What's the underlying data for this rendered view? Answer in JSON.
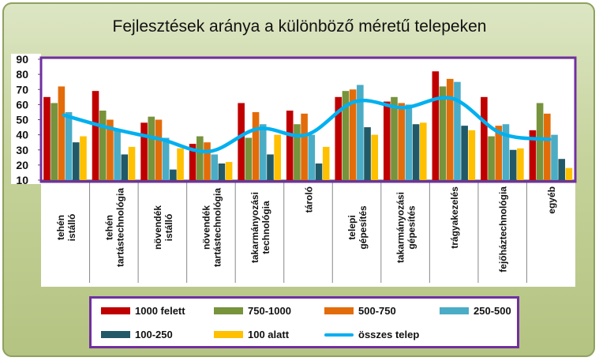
{
  "chart_data": {
    "type": "bar",
    "title": "Fejlesztések aránya a különböző méretű telepeken",
    "ylim": [
      10,
      90
    ],
    "yticks": [
      10,
      20,
      30,
      40,
      50,
      60,
      70,
      80,
      90
    ],
    "categories": [
      "tehén istálló",
      "tehén tartástechnológia",
      "növendék istálló",
      "növendék tartástechnológia",
      "takarmányozási technológia",
      "tároló",
      "telepi gépesítés",
      "takarmányozási gépesítés",
      "trágyakezelés",
      "fejőháztechnológia",
      "egyéb"
    ],
    "series": [
      {
        "name": "1000 felett",
        "color": "#c00000",
        "values": [
          65,
          69,
          48,
          34,
          61,
          56,
          65,
          62,
          82,
          65,
          43
        ]
      },
      {
        "name": "750-1000",
        "color": "#77933c",
        "values": [
          61,
          56,
          52,
          39,
          38,
          47,
          69,
          65,
          72,
          39,
          61
        ]
      },
      {
        "name": "500-750",
        "color": "#e36c0a",
        "values": [
          72,
          50,
          50,
          35,
          55,
          54,
          70,
          61,
          77,
          46,
          54
        ]
      },
      {
        "name": "250-500",
        "color": "#4bacc6",
        "values": [
          55,
          44,
          38,
          27,
          47,
          40,
          73,
          60,
          75,
          47,
          40
        ]
      },
      {
        "name": "100-250",
        "color": "#215968",
        "values": [
          35,
          27,
          17,
          21,
          27,
          21,
          45,
          47,
          46,
          30,
          24
        ]
      },
      {
        "name": "100 alatt",
        "color": "#ffc000",
        "values": [
          39,
          32,
          31,
          22,
          40,
          32,
          40,
          48,
          43,
          31,
          18
        ]
      }
    ],
    "line_series": {
      "name": "összes telep",
      "color": "#00b0f0",
      "values": [
        53,
        44,
        37,
        29,
        44,
        40,
        62,
        58,
        64,
        41,
        37
      ]
    },
    "legend_position": "bottom",
    "grid": false
  },
  "legend_columns": 3
}
